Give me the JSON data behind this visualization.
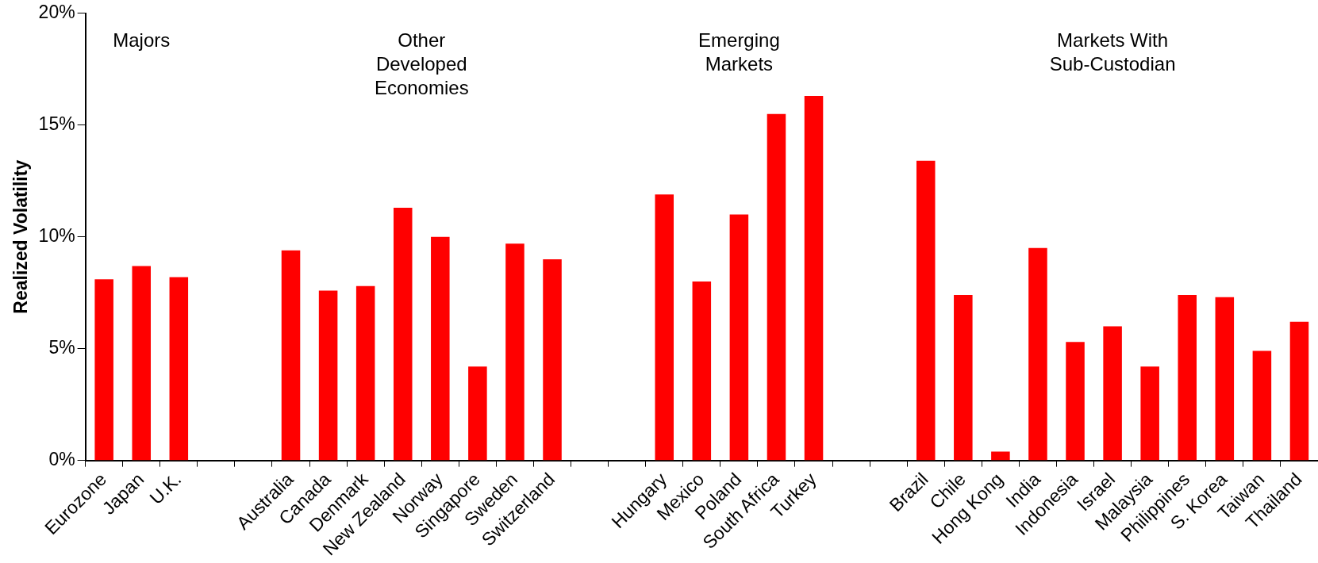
{
  "chart_data": {
    "type": "bar",
    "ylabel": "Realized Volatility",
    "categories": [
      "Eurozone",
      "Japan",
      "U.K.",
      null,
      null,
      "Australia",
      "Canada",
      "Denmark",
      "New Zealand",
      "Norway",
      "Singapore",
      "Sweden",
      "Switzerland",
      null,
      null,
      "Hungary",
      "Mexico",
      "Poland",
      "South Africa",
      "Turkey",
      null,
      null,
      "Brazil",
      "Chile",
      "Hong Kong",
      "India",
      "Indonesia",
      "Israel",
      "Malaysia",
      "Philippines",
      "S. Korea",
      "Taiwan",
      "Thailand"
    ],
    "values": [
      8.1,
      8.7,
      8.2,
      null,
      null,
      9.4,
      7.6,
      7.8,
      11.3,
      10.0,
      4.2,
      9.7,
      9.0,
      null,
      null,
      11.9,
      8.0,
      11.0,
      15.5,
      16.3,
      null,
      null,
      13.4,
      7.4,
      0.4,
      9.5,
      5.3,
      6.0,
      4.2,
      7.4,
      7.3,
      4.9,
      6.2
    ],
    "color": "#ff0000",
    "ylim": [
      0,
      20
    ],
    "yticks": [
      {
        "value": 0,
        "label": "0%"
      },
      {
        "value": 5,
        "label": "5%"
      },
      {
        "value": 10,
        "label": "10%"
      },
      {
        "value": 15,
        "label": "15%"
      },
      {
        "value": 20,
        "label": "20%"
      }
    ],
    "grid": false,
    "legend": false,
    "annotations": [
      "Majors",
      "Other\nDeveloped\nEconomies",
      "Emerging\nMarkets",
      "Markets With\nSub-Custodian"
    ]
  }
}
